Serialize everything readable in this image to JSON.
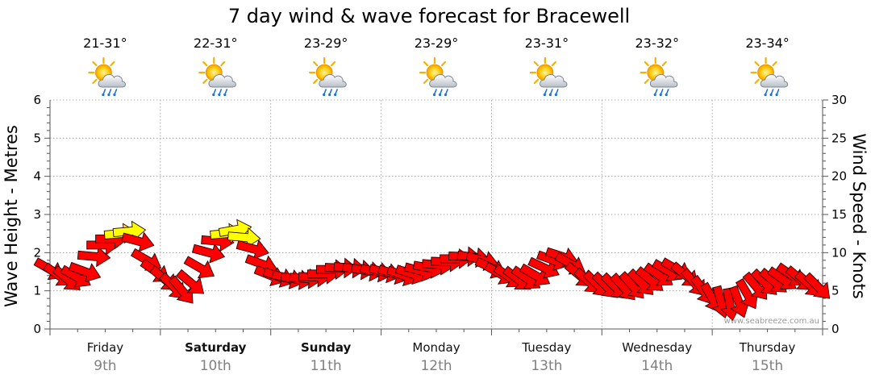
{
  "chart_data": {
    "type": "wind-wave-forecast",
    "title": "7 day wind & wave forecast for Bracewell",
    "y_left_label": "Wave Height - Metres",
    "y_right_label": "Wind Speed - Knots",
    "y_left_ticks": [
      "0",
      "1",
      "2",
      "3",
      "4",
      "5",
      "6"
    ],
    "y_right_ticks": [
      "0",
      "5",
      "10",
      "15",
      "20",
      "25",
      "30"
    ],
    "y_left_range": [
      0,
      6
    ],
    "y_right_range": [
      0,
      30
    ],
    "grid": true,
    "credit": "www.seabreeze.com.au",
    "days": [
      {
        "name": "Friday",
        "date": "9th",
        "bold": false,
        "temp": "21-31°",
        "icon": "partly-cloudy-rain-icon"
      },
      {
        "name": "Saturday",
        "date": "10th",
        "bold": true,
        "temp": "22-31°",
        "icon": "partly-cloudy-rain-icon"
      },
      {
        "name": "Sunday",
        "date": "11th",
        "bold": true,
        "temp": "23-29°",
        "icon": "partly-cloudy-rain-icon"
      },
      {
        "name": "Monday",
        "date": "12th",
        "bold": false,
        "temp": "23-29°",
        "icon": "partly-cloudy-rain-icon"
      },
      {
        "name": "Tuesday",
        "date": "13th",
        "bold": false,
        "temp": "23-31°",
        "icon": "partly-cloudy-rain-icon"
      },
      {
        "name": "Wednesday",
        "date": "14th",
        "bold": false,
        "temp": "23-32°",
        "icon": "partly-cloudy-rain-icon"
      },
      {
        "name": "Thursday",
        "date": "15th",
        "bold": false,
        "temp": "23-34°",
        "icon": "partly-cloudy-rain-icon"
      }
    ],
    "wind_series": {
      "name": "Wind Speed",
      "units": "knots",
      "color_normal": "#ff0000",
      "color_strong": "#ffff00",
      "strong_threshold_knots": 12,
      "x_day": [
        0.0,
        0.08,
        0.16,
        0.24,
        0.32,
        0.4,
        0.48,
        0.56,
        0.64,
        0.72,
        0.8,
        0.88,
        0.96,
        1.04,
        1.12,
        1.2,
        1.28,
        1.36,
        1.44,
        1.52,
        1.6,
        1.68,
        1.76,
        1.84,
        1.92,
        2.0,
        2.08,
        2.16,
        2.24,
        2.32,
        2.4,
        2.48,
        2.56,
        2.64,
        2.72,
        2.8,
        2.88,
        2.96,
        3.04,
        3.12,
        3.2,
        3.28,
        3.36,
        3.44,
        3.52,
        3.6,
        3.68,
        3.76,
        3.84,
        3.92,
        4.0,
        4.08,
        4.16,
        4.24,
        4.32,
        4.4,
        4.48,
        4.56,
        4.64,
        4.72,
        4.8,
        4.88,
        4.96,
        5.04,
        5.12,
        5.2,
        5.28,
        5.36,
        5.44,
        5.52,
        5.6,
        5.68,
        5.76,
        5.84,
        5.92,
        6.0,
        6.08,
        6.16,
        6.24,
        6.32,
        6.4,
        6.48,
        6.56,
        6.64,
        6.72,
        6.8,
        6.88,
        6.96
      ],
      "knots": [
        7.8,
        7.0,
        6.5,
        6.8,
        7.5,
        9.5,
        11.0,
        11.8,
        12.5,
        12.8,
        11.5,
        9.0,
        7.5,
        6.5,
        5.5,
        5.0,
        6.0,
        8.0,
        10.0,
        11.5,
        12.5,
        13.0,
        12.0,
        10.5,
        8.5,
        7.0,
        6.8,
        6.6,
        6.5,
        6.6,
        6.8,
        7.2,
        7.8,
        8.0,
        8.0,
        7.8,
        7.6,
        7.5,
        7.4,
        7.2,
        7.0,
        7.2,
        7.6,
        8.0,
        8.4,
        8.8,
        9.2,
        9.5,
        9.4,
        9.0,
        8.0,
        7.2,
        6.8,
        6.5,
        6.6,
        7.0,
        8.0,
        9.0,
        9.5,
        8.5,
        7.0,
        6.2,
        5.8,
        5.6,
        5.5,
        5.4,
        5.6,
        6.0,
        6.4,
        7.0,
        7.6,
        7.8,
        7.0,
        6.0,
        5.0,
        4.0,
        3.5,
        3.2,
        3.5,
        4.5,
        5.5,
        6.0,
        6.2,
        6.5,
        7.0,
        6.5,
        5.8,
        5.5
      ],
      "direction_deg": [
        300,
        305,
        310,
        300,
        290,
        275,
        270,
        270,
        265,
        265,
        285,
        300,
        305,
        310,
        315,
        320,
        310,
        300,
        285,
        275,
        265,
        260,
        275,
        285,
        290,
        292,
        290,
        285,
        280,
        275,
        272,
        270,
        270,
        272,
        275,
        278,
        280,
        282,
        285,
        288,
        290,
        288,
        285,
        280,
        275,
        272,
        270,
        272,
        278,
        285,
        295,
        300,
        305,
        308,
        305,
        300,
        295,
        290,
        288,
        300,
        310,
        312,
        315,
        315,
        315,
        318,
        318,
        315,
        310,
        305,
        300,
        300,
        310,
        320,
        325,
        330,
        345,
        350,
        340,
        330,
        320,
        315,
        310,
        305,
        305,
        310,
        312,
        315
      ]
    }
  }
}
